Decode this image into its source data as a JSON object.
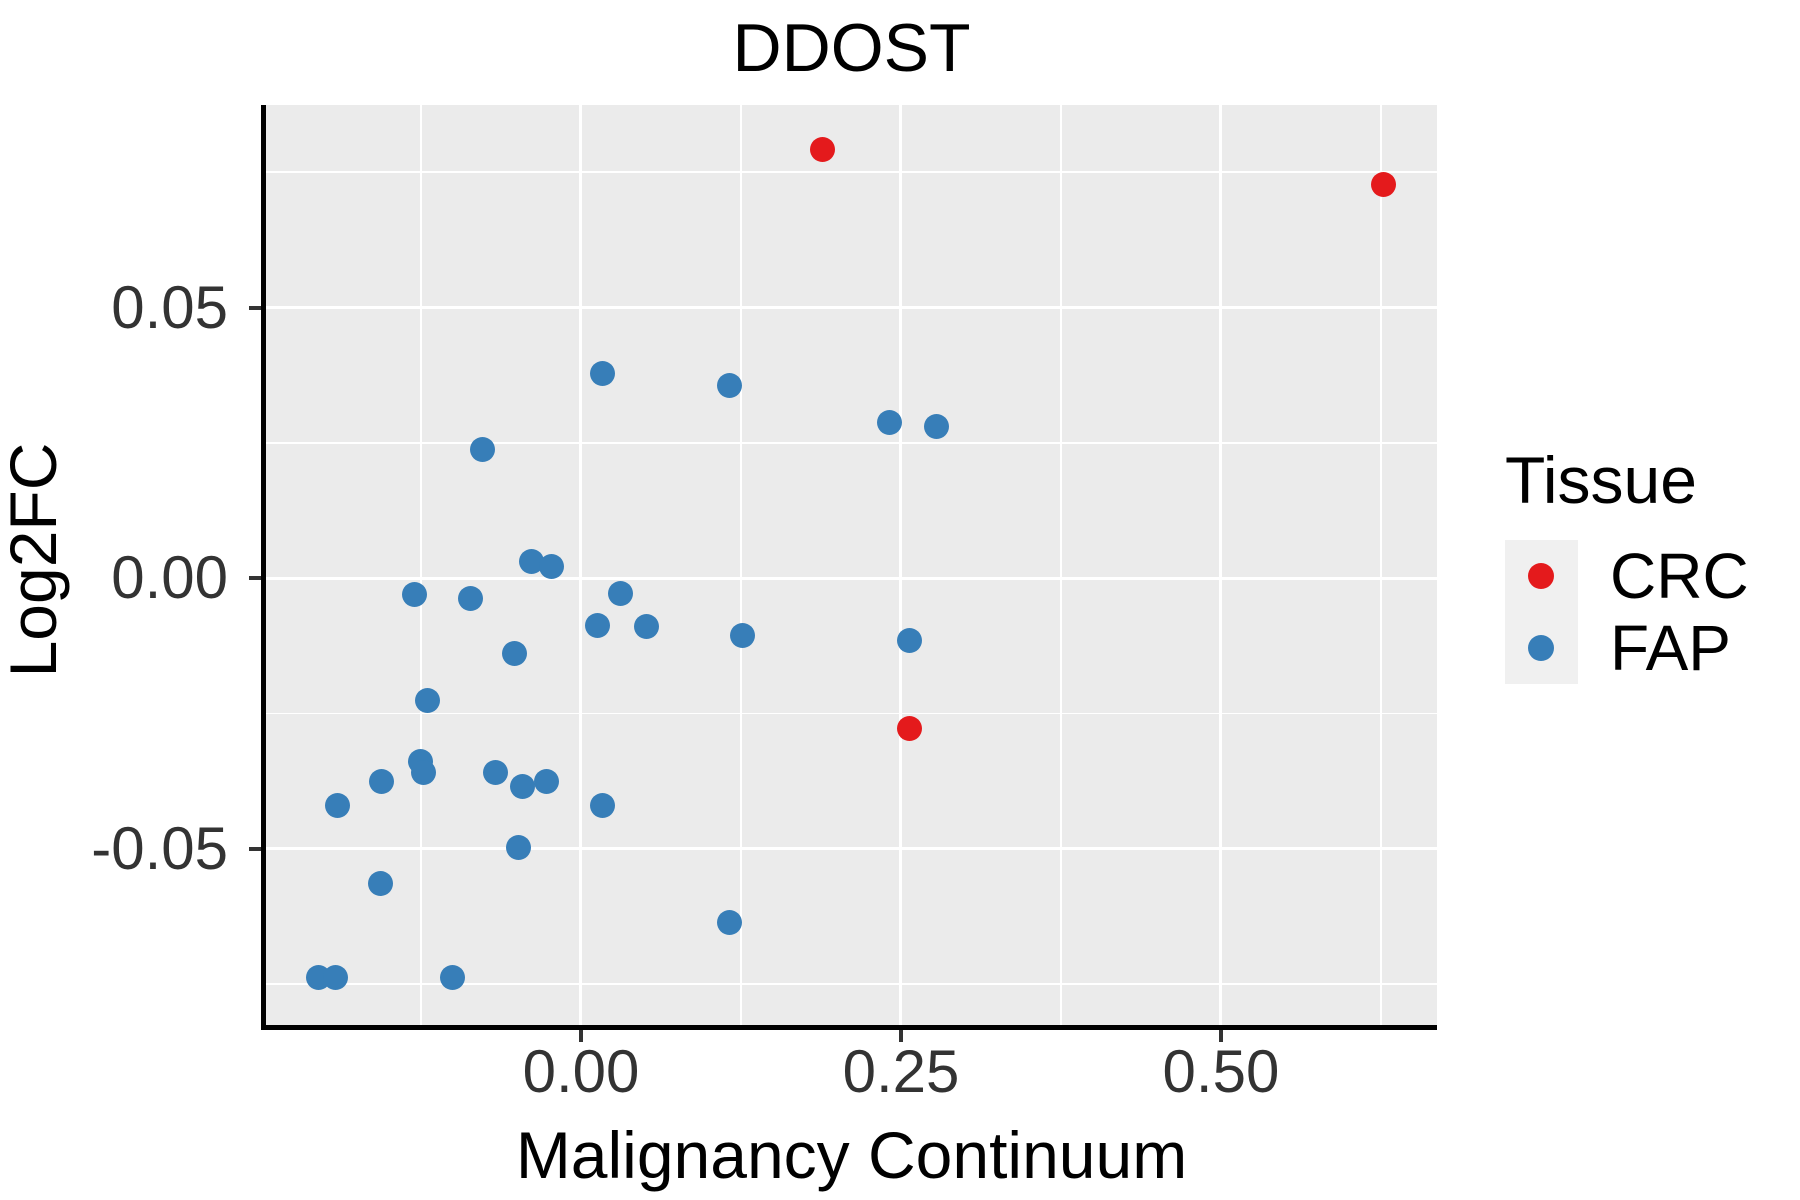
{
  "title": "DDOST",
  "axes": {
    "x": {
      "label": "Malignancy Continuum",
      "min": -0.2461,
      "max": 0.6688,
      "major_ticks": [
        0.0,
        0.25,
        0.5
      ],
      "tick_labels": [
        "0.00",
        "0.25",
        "0.50"
      ],
      "minor_ticks": [
        -0.125,
        0.125,
        0.375,
        0.625
      ]
    },
    "y": {
      "label": "Log2FC",
      "min": -0.08262,
      "max": 0.08743,
      "major_ticks": [
        0.05,
        0.0,
        -0.05
      ],
      "tick_labels": [
        "0.05",
        "0.00",
        "-0.05"
      ],
      "minor_ticks": [
        0.075,
        0.025,
        -0.025,
        -0.075
      ]
    }
  },
  "legend": {
    "title": "Tissue",
    "items": [
      {
        "label": "CRC",
        "color": "#E41A1C"
      },
      {
        "label": "FAP",
        "color": "#377EB8"
      }
    ]
  },
  "colors": {
    "panel_bg": "#EBEBEB",
    "grid": "#FFFFFF",
    "axis_line": "#000000",
    "tick_mark": "#333333",
    "tick_label": "#333333",
    "legend_key_bg": "#F0F0F0",
    "crc": "#E41A1C",
    "fap": "#377EB8"
  },
  "chart_data": {
    "type": "scatter",
    "title": "DDOST",
    "xlabel": "Malignancy Continuum",
    "ylabel": "Log2FC",
    "xlim": [
      -0.246,
      0.669
    ],
    "ylim": [
      -0.0826,
      0.0874
    ],
    "grid": true,
    "legend_position": "right",
    "series": [
      {
        "name": "CRC",
        "color": "#E41A1C",
        "points": [
          [
            0.189,
            0.0792
          ],
          [
            0.627,
            0.0727
          ],
          [
            0.257,
            -0.0279
          ]
        ]
      },
      {
        "name": "FAP",
        "color": "#377EB8",
        "points": [
          [
            0.017,
            0.0378
          ],
          [
            0.116,
            0.0356
          ],
          [
            0.241,
            0.0287
          ],
          [
            0.278,
            0.028
          ],
          [
            -0.077,
            0.0237
          ],
          [
            -0.039,
            0.003
          ],
          [
            -0.023,
            0.0021
          ],
          [
            -0.13,
            -0.003
          ],
          [
            -0.086,
            -0.0037
          ],
          [
            0.031,
            -0.0028
          ],
          [
            0.013,
            -0.0087
          ],
          [
            0.051,
            -0.0089
          ],
          [
            0.126,
            -0.0106
          ],
          [
            0.257,
            -0.0115
          ],
          [
            -0.052,
            -0.0139
          ],
          [
            -0.12,
            -0.0226
          ],
          [
            -0.125,
            -0.034
          ],
          [
            -0.123,
            -0.0359
          ],
          [
            -0.156,
            -0.0376
          ],
          [
            -0.067,
            -0.0359
          ],
          [
            -0.046,
            -0.0385
          ],
          [
            -0.027,
            -0.0376
          ],
          [
            -0.19,
            -0.0421
          ],
          [
            0.017,
            -0.0421
          ],
          [
            -0.049,
            -0.0499
          ],
          [
            -0.157,
            -0.0565
          ],
          [
            0.116,
            -0.0637
          ],
          [
            -0.205,
            -0.0739
          ],
          [
            -0.192,
            -0.0739
          ],
          [
            -0.1,
            -0.0739
          ]
        ]
      }
    ]
  }
}
